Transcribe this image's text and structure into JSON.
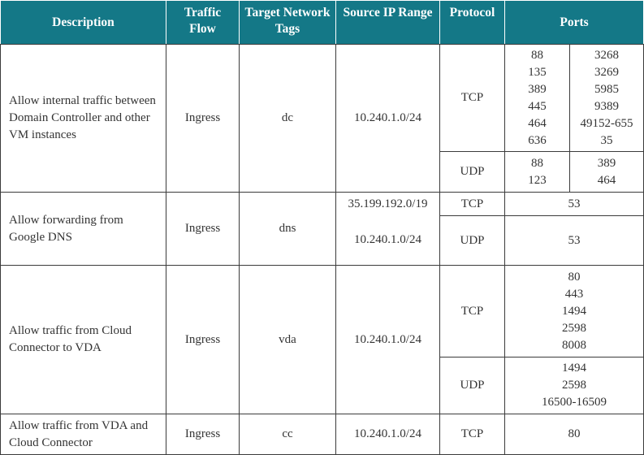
{
  "headers": {
    "description": "Description",
    "traffic_flow": "Traffic Flow",
    "target_tags": "Target Network Tags",
    "source_ip": "Source IP Range",
    "protocol": "Protocol",
    "ports": "Ports"
  },
  "rules": [
    {
      "description": "Allow internal traffic between Domain Controller and other VM instances",
      "flow": "Ingress",
      "tag": "dc",
      "source": "10.240.1.0/24",
      "tcp": {
        "protocol": "TCP",
        "ports_left": [
          "88",
          "135",
          "389",
          "445",
          "464",
          "636"
        ],
        "ports_right": [
          "3268",
          "3269",
          "5985",
          "9389",
          "49152-655",
          "35"
        ]
      },
      "udp": {
        "protocol": "UDP",
        "ports_left": [
          "88",
          "123"
        ],
        "ports_right": [
          "389",
          "464"
        ]
      }
    },
    {
      "description": "Allow forwarding from Google DNS",
      "flow": "Ingress",
      "tag": "dns",
      "source_tcp": "35.199.192.0/19",
      "source_udp": "10.240.1.0/24",
      "tcp": {
        "protocol": "TCP",
        "ports": "53"
      },
      "udp": {
        "protocol": "UDP",
        "ports": "53"
      }
    },
    {
      "description": "Allow traffic from Cloud Connector to VDA",
      "flow": "Ingress",
      "tag": "vda",
      "source": "10.240.1.0/24",
      "tcp": {
        "protocol": "TCP",
        "ports": [
          "80",
          "443",
          "1494",
          "2598",
          "8008"
        ]
      },
      "udp": {
        "protocol": "UDP",
        "ports": [
          "1494",
          "2598",
          "16500-16509"
        ]
      }
    },
    {
      "description": "Allow traffic from VDA and Cloud Connector",
      "flow": "Ingress",
      "tag": "cc",
      "source": "10.240.1.0/24",
      "tcp": {
        "protocol": "TCP",
        "ports": "80"
      }
    }
  ]
}
